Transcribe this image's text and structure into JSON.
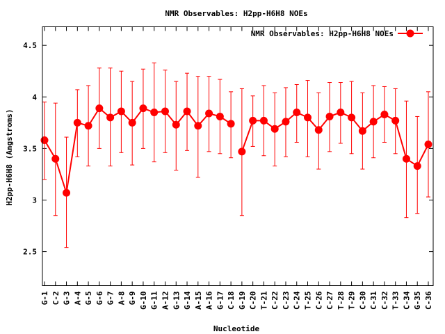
{
  "chart_data": {
    "type": "line",
    "title": "NMR Observables: H2pp-H6H8 NOEs",
    "xlabel": "Nucleotide",
    "ylabel": "H2pp-H6H8 (Angstroms)",
    "ylim": [
      2.17,
      4.68
    ],
    "yticks": [
      2.5,
      3,
      3.5,
      4,
      4.5
    ],
    "ytick_labels": [
      "2.5",
      "3",
      "3.5",
      "4",
      "4.5"
    ],
    "grid": false,
    "legend_position": "top-right",
    "series": [
      {
        "name": "NMR Observables: H2pp-H6H8 NOEs",
        "color": "#ff0000",
        "x": [
          "G-1",
          "C-2",
          "G-3",
          "A-4",
          "G-5",
          "G-6",
          "G-7",
          "A-8",
          "G-9",
          "G-10",
          "G-11",
          "A-12",
          "G-13",
          "G-14",
          "A-15",
          "A-16",
          "G-17",
          "C-18",
          "G-19",
          "C-20",
          "T-21",
          "C-22",
          "C-23",
          "C-24",
          "T-25",
          "C-26",
          "C-27",
          "T-28",
          "T-29",
          "C-30",
          "C-31",
          "C-32",
          "T-33",
          "C-34",
          "G-35",
          "C-36"
        ],
        "values": [
          3.58,
          3.4,
          3.07,
          3.75,
          3.72,
          3.89,
          3.8,
          3.86,
          3.75,
          3.89,
          3.85,
          3.86,
          3.73,
          3.86,
          3.72,
          3.84,
          3.81,
          3.74,
          3.47,
          3.77,
          3.77,
          3.69,
          3.76,
          3.85,
          3.8,
          3.68,
          3.81,
          3.85,
          3.8,
          3.67,
          3.76,
          3.83,
          3.77,
          3.4,
          3.33,
          3.54
        ],
        "error_low": [
          3.2,
          2.85,
          2.54,
          3.42,
          3.33,
          3.5,
          3.33,
          3.46,
          3.34,
          3.5,
          3.37,
          3.46,
          3.29,
          3.48,
          3.22,
          3.47,
          3.45,
          3.41,
          2.85,
          3.52,
          3.43,
          3.33,
          3.42,
          3.56,
          3.42,
          3.3,
          3.47,
          3.55,
          3.45,
          3.3,
          3.41,
          3.56,
          3.45,
          2.83,
          2.87,
          3.03
        ],
        "error_high": [
          3.95,
          3.94,
          3.61,
          4.07,
          4.11,
          4.28,
          4.28,
          4.25,
          4.15,
          4.27,
          4.33,
          4.26,
          4.15,
          4.23,
          4.2,
          4.2,
          4.17,
          4.05,
          4.08,
          4.01,
          4.11,
          4.04,
          4.09,
          4.12,
          4.16,
          4.04,
          4.14,
          4.14,
          4.15,
          4.04,
          4.11,
          4.1,
          4.08,
          3.96,
          3.81,
          4.05
        ],
        "segments": [
          [
            0,
            17
          ],
          [
            18,
            35
          ]
        ]
      }
    ]
  }
}
